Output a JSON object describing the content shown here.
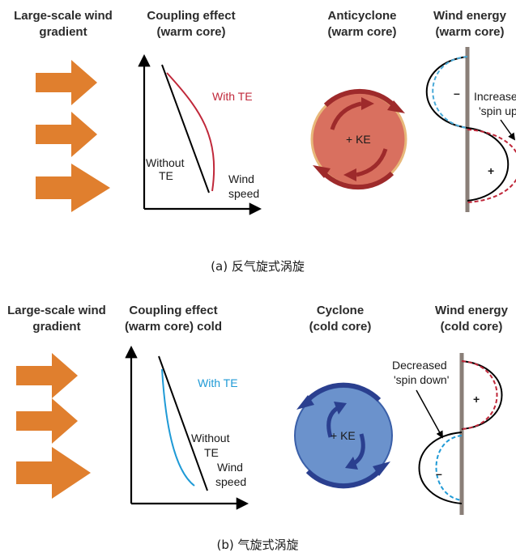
{
  "panel_a": {
    "col1_title": [
      "Large-scale wind",
      "gradient"
    ],
    "col2_title": [
      "Coupling effect",
      "(warm core)"
    ],
    "col3_title": [
      "Anticyclone",
      "(warm core)"
    ],
    "col4_title": [
      "Wind energy",
      "(warm core)"
    ],
    "with_te": "With TE",
    "without_te": [
      "Without",
      "TE"
    ],
    "wind_speed": [
      "Wind",
      "speed"
    ],
    "ke": "+ KE",
    "note": [
      "Increased",
      "'spin up'"
    ],
    "minus": "–",
    "plus": "+",
    "caption": "(a) 反气旋式涡旋",
    "colors": {
      "arrow": "#e07f2e",
      "fill": "#d9705f",
      "ring": "#e8b87a",
      "rot": "#9e2a2b",
      "te": "#c0283a",
      "dash_top": "#4aaad8",
      "dash_bottom": "#c0283a"
    }
  },
  "panel_b": {
    "col1_title": [
      "Large-scale wind",
      "gradient"
    ],
    "col2_title": [
      "Coupling effect",
      "(warm core) cold"
    ],
    "col3_title": [
      "Cyclone",
      "(cold core)"
    ],
    "col4_title": [
      "Wind energy",
      "(cold core)"
    ],
    "with_te": "With TE",
    "without_te": [
      "Without",
      "TE"
    ],
    "wind_speed": [
      "Wind",
      "speed"
    ],
    "ke": "+ KE",
    "note": [
      "Decreased",
      "'spin down'"
    ],
    "minus": "–",
    "plus": "+",
    "caption": "(b) 气旋式涡旋",
    "colors": {
      "arrow": "#e07f2e",
      "fill": "#6b92cc",
      "ring": "#3a5fa8",
      "rot": "#2a3f8f",
      "te": "#1f9ad6",
      "dash_top": "#c0283a",
      "dash_bottom": "#1f9ad6"
    }
  }
}
